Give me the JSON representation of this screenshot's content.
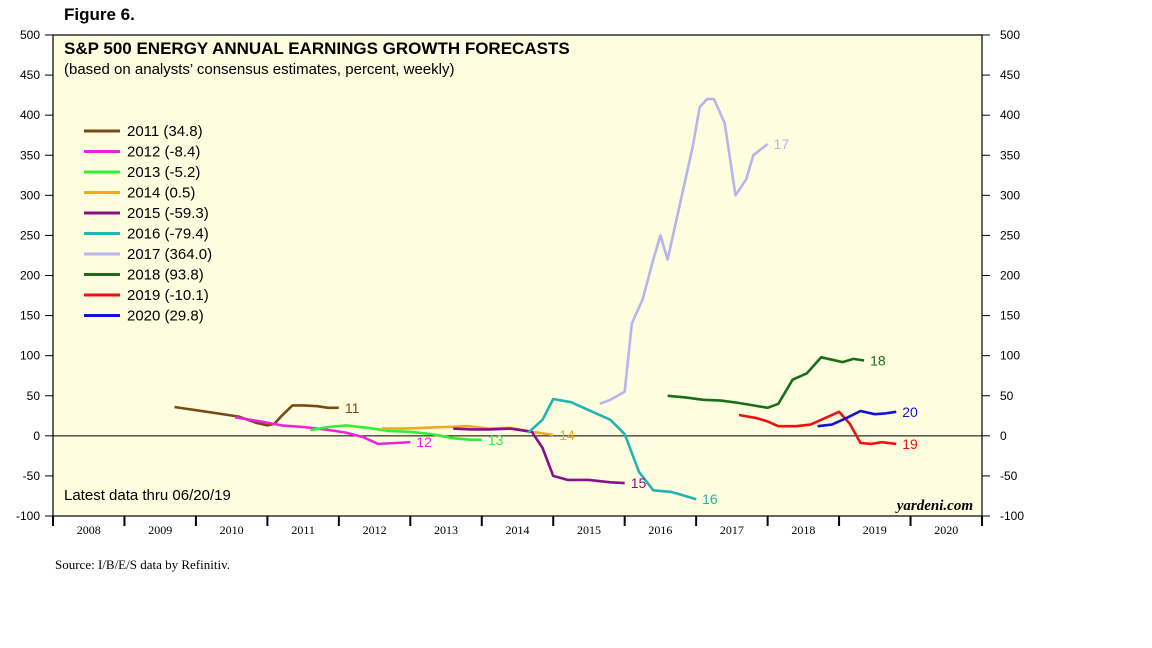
{
  "figure_label": "Figure 6.",
  "source": "Source: I/B/E/S data by Refinitiv.",
  "colors": {
    "background": "#ffffff",
    "plot_background": "#fffde0",
    "axis": "#000000"
  },
  "chart_data": {
    "type": "line",
    "title": "S&P 500 ENERGY ANNUAL EARNINGS GROWTH FORECASTS",
    "subtitle": "(based on analysts’ consensus estimates, percent, weekly)",
    "note": "Latest data thru 06/20/19",
    "watermark": "yardeni.com",
    "xlabel": "",
    "ylabel": "",
    "xlim": [
      2008,
      2021
    ],
    "ylim": [
      -100,
      500
    ],
    "yticks": [
      -100,
      -50,
      0,
      50,
      100,
      150,
      200,
      250,
      300,
      350,
      400,
      450,
      500
    ],
    "xtick_labels": [
      "2008",
      "2009",
      "2010",
      "2011",
      "2012",
      "2013",
      "2014",
      "2015",
      "2016",
      "2017",
      "2018",
      "2019",
      "2020"
    ],
    "legend_position": "upper-left",
    "series": [
      {
        "name": "2011",
        "legend": "2011 (34.8)",
        "end_label": "11",
        "color": "#7a4a14",
        "x": [
          2009.7,
          2009.85,
          2010.0,
          2010.3,
          2010.6,
          2010.85,
          2011.0,
          2011.1,
          2011.2,
          2011.35,
          2011.5,
          2011.7,
          2011.85,
          2012.0
        ],
        "y": [
          36,
          34,
          32,
          28,
          24,
          16,
          13,
          15,
          25,
          38,
          38,
          37,
          35,
          35
        ]
      },
      {
        "name": "2012",
        "legend": "2012 (-8.4)",
        "end_label": "12",
        "color": "#ee22dd",
        "x": [
          2010.55,
          2010.9,
          2011.2,
          2011.5,
          2011.8,
          2012.1,
          2012.35,
          2012.55,
          2012.8,
          2013.0
        ],
        "y": [
          23,
          18,
          13,
          11,
          8,
          4,
          -2,
          -10,
          -9,
          -8
        ]
      },
      {
        "name": "2013",
        "legend": "2013 (-5.2)",
        "end_label": "13",
        "color": "#33ee33",
        "x": [
          2011.6,
          2011.85,
          2012.1,
          2012.4,
          2012.7,
          2013.0,
          2013.3,
          2013.6,
          2013.85,
          2014.0
        ],
        "y": [
          7,
          11,
          13,
          10,
          6,
          5,
          2,
          -3,
          -5,
          -5
        ]
      },
      {
        "name": "2014",
        "legend": "2014 (0.5)",
        "end_label": "14",
        "color": "#f5a623",
        "x": [
          2012.6,
          2012.9,
          2013.2,
          2013.5,
          2013.8,
          2014.1,
          2014.4,
          2014.7,
          2015.0
        ],
        "y": [
          9,
          9,
          10,
          11,
          12,
          9,
          10,
          5,
          1
        ]
      },
      {
        "name": "2015",
        "legend": "2015 (-59.3)",
        "end_label": "15",
        "color": "#881188",
        "x": [
          2013.6,
          2013.85,
          2014.1,
          2014.4,
          2014.7,
          2014.85,
          2015.0,
          2015.2,
          2015.5,
          2015.8,
          2016.0
        ],
        "y": [
          9,
          8,
          8,
          9,
          5,
          -15,
          -50,
          -55,
          -55,
          -58,
          -59
        ]
      },
      {
        "name": "2016",
        "legend": "2016 (-79.4)",
        "end_label": "16",
        "color": "#22b3b3",
        "x": [
          2014.65,
          2014.85,
          2015.0,
          2015.25,
          2015.55,
          2015.8,
          2016.0,
          2016.2,
          2016.4,
          2016.65,
          2016.85,
          2017.0
        ],
        "y": [
          4,
          20,
          46,
          42,
          30,
          20,
          2,
          -45,
          -68,
          -70,
          -75,
          -79
        ]
      },
      {
        "name": "2017",
        "legend": "2017 (364.0)",
        "end_label": "17",
        "color": "#b8b4ee",
        "x": [
          2015.65,
          2015.8,
          2016.0,
          2016.1,
          2016.25,
          2016.4,
          2016.5,
          2016.6,
          2016.8,
          2016.95,
          2017.05,
          2017.15,
          2017.25,
          2017.4,
          2017.55,
          2017.7,
          2017.8,
          2018.0
        ],
        "y": [
          40,
          45,
          55,
          140,
          170,
          220,
          250,
          220,
          300,
          360,
          410,
          420,
          420,
          390,
          300,
          320,
          350,
          364
        ]
      },
      {
        "name": "2018",
        "legend": "2018 (93.8)",
        "end_label": "18",
        "color": "#177017",
        "x": [
          2016.6,
          2016.85,
          2017.1,
          2017.35,
          2017.6,
          2017.8,
          2018.0,
          2018.15,
          2018.35,
          2018.55,
          2018.75,
          2018.9,
          2019.05,
          2019.2,
          2019.35
        ],
        "y": [
          50,
          48,
          45,
          44,
          41,
          38,
          35,
          40,
          70,
          78,
          98,
          95,
          92,
          96,
          94
        ]
      },
      {
        "name": "2019",
        "legend": "2019 (-10.1)",
        "end_label": "19",
        "color": "#ee1111",
        "x": [
          2017.6,
          2017.85,
          2018.0,
          2018.15,
          2018.4,
          2018.6,
          2018.8,
          2019.0,
          2019.15,
          2019.3,
          2019.45,
          2019.6,
          2019.8
        ],
        "y": [
          26,
          22,
          18,
          12,
          12,
          14,
          22,
          30,
          15,
          -9,
          -10,
          -8,
          -10
        ]
      },
      {
        "name": "2020",
        "legend": "2020 (29.8)",
        "end_label": "20",
        "color": "#1111dd",
        "x": [
          2018.7,
          2018.9,
          2019.1,
          2019.3,
          2019.5,
          2019.65,
          2019.8
        ],
        "y": [
          12,
          14,
          22,
          31,
          27,
          28,
          30
        ]
      }
    ]
  }
}
